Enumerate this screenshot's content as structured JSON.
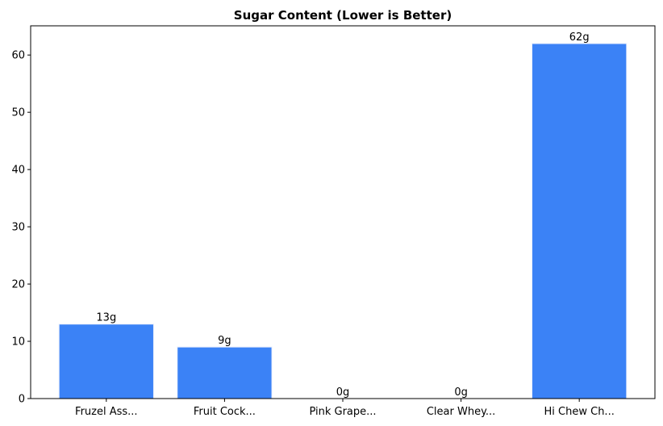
{
  "chart_data": {
    "type": "bar",
    "title": "Sugar Content (Lower is Better)",
    "categories": [
      "Fruzel Ass...",
      "Fruit Cock...",
      "Pink Grape...",
      "Clear Whey...",
      "Hi Chew Ch..."
    ],
    "values": [
      13,
      9,
      0,
      0,
      62
    ],
    "value_labels": [
      "13g",
      "9g",
      "0g",
      "0g",
      "62g"
    ],
    "color": "#3b82f6",
    "ylim": [
      0,
      65.1
    ],
    "yticks": [
      0,
      10,
      20,
      30,
      40,
      50,
      60
    ],
    "grid": false
  }
}
